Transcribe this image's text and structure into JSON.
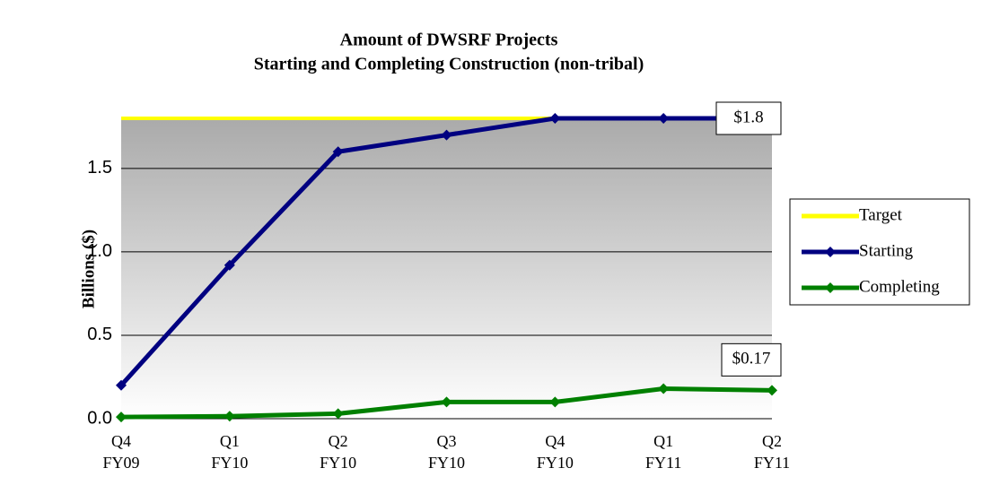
{
  "chart_data": {
    "type": "line",
    "title": [
      "Amount of DWSRF Projects",
      "Starting and Completing Construction (non-tribal)"
    ],
    "ylabel": "Billions ($)",
    "categories": [
      [
        "Q4",
        "FY09"
      ],
      [
        "Q1",
        "FY10"
      ],
      [
        "Q2",
        "FY10"
      ],
      [
        "Q3",
        "FY10"
      ],
      [
        "Q4",
        "FY10"
      ],
      [
        "Q1",
        "FY11"
      ],
      [
        "Q2",
        "FY11"
      ]
    ],
    "series": [
      {
        "name": "Target",
        "color": "#ffff00",
        "marker": false,
        "values": [
          1.8,
          1.8,
          1.8,
          1.8,
          1.8,
          1.8,
          1.8
        ]
      },
      {
        "name": "Starting",
        "color": "#000080",
        "marker": true,
        "values": [
          0.2,
          0.92,
          1.6,
          1.7,
          1.8,
          1.8,
          1.8
        ],
        "value_labels": [
          null,
          null,
          null,
          null,
          null,
          null,
          "$1.8"
        ]
      },
      {
        "name": "Completing",
        "color": "#008000",
        "marker": true,
        "values": [
          0.01,
          0.015,
          0.03,
          0.1,
          0.1,
          0.18,
          0.17
        ],
        "value_labels": [
          null,
          null,
          null,
          null,
          null,
          null,
          "$0.17"
        ]
      }
    ],
    "ylim": [
      0,
      1.8
    ],
    "yticks": [
      {
        "value": 0,
        "label": "0.0"
      },
      0.5,
      {
        "value": 1,
        "label": "1.0"
      },
      1.5
    ],
    "grid": true,
    "legend": "right"
  }
}
